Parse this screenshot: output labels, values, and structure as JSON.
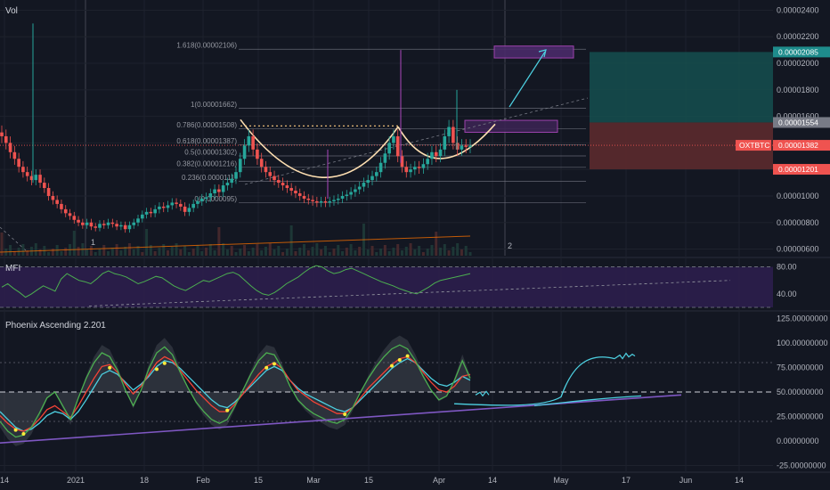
{
  "panels": {
    "main": {
      "title": "Vol",
      "ticker": "OXTBTC"
    },
    "mfi": {
      "title": "MFI"
    },
    "phoenix": {
      "title": "Phoenix Ascending 2.201"
    }
  },
  "colors": {
    "background": "#131722",
    "grid": "#1e222d",
    "up": "#26a69a",
    "down": "#ef5350",
    "cup": "#ffe0b2",
    "mfi_fill": "#2e1f4f",
    "phoenix_green": "#4caf50",
    "phoenix_red": "#f44336",
    "phoenix_blue": "#4dd0e1",
    "trend_purple": "#7e57c2",
    "long_target": "#154f4f",
    "long_stop": "#5c2a2e"
  },
  "chart_data": [
    {
      "type": "candlestick",
      "pane": "price",
      "title": "Vol",
      "x_ticks": [
        "14",
        "2021",
        "18",
        "Feb",
        "15",
        "Mar",
        "15",
        "Apr",
        "14",
        "May",
        "17",
        "Jun",
        "14"
      ],
      "y_ticks": [
        "0.00002400",
        "0.00002200",
        "0.00002000",
        "0.00001800",
        "0.00001600",
        "0.00001400",
        "0.00001200",
        "0.00001000",
        "0.00000800",
        "0.00000600"
      ],
      "ylim": [
        5.5e-06,
        2.45e-05
      ],
      "fib_levels": [
        {
          "label": "1.618(0.00002106)",
          "value": 2.106e-05
        },
        {
          "label": "1(0.00001662)",
          "value": 1.662e-05
        },
        {
          "label": "0.786(0.00001508)",
          "value": 1.508e-05
        },
        {
          "label": "0.618(0.00001387)",
          "value": 1.387e-05
        },
        {
          "label": "0.5(0.00001302)",
          "value": 1.302e-05
        },
        {
          "label": "0.382(0.00001216)",
          "value": 1.216e-05
        },
        {
          "label": "0.236(0.0000111)",
          "value": 1.11e-05
        },
        {
          "label": "0(0.0000095)",
          "value": 9.5e-06
        }
      ],
      "price_badges": [
        {
          "label": "0.00002085",
          "value": 2.085e-05,
          "color": "#1e8c8c"
        },
        {
          "label": "0.00001554",
          "value": 1.554e-05,
          "color": "#787b86"
        },
        {
          "label": "0.00001382",
          "value": 1.382e-05,
          "color": "#ef5350",
          "ticker": "OXTBTC"
        },
        {
          "label": "0.00001201",
          "value": 1.201e-05,
          "color": "#ef5350"
        }
      ],
      "closes": [
        1.45e-05,
        1.4e-05,
        1.33e-05,
        1.28e-05,
        1.22e-05,
        1.18e-05,
        1.15e-05,
        1.12e-05,
        1.16e-05,
        1.1e-05,
        1.06e-05,
        1e-05,
        9.7e-06,
        9.4e-06,
        9e-06,
        8.7e-06,
        8.5e-06,
        8.2e-06,
        8e-06,
        7.8e-06,
        8e-06,
        7.7e-06,
        7.6e-06,
        7.9e-06,
        7.8e-06,
        8e-06,
        7.9e-06,
        7.7e-06,
        7.8e-06,
        7.5e-06,
        7.8e-06,
        8e-06,
        8.3e-06,
        8.6e-06,
        8.8e-06,
        8.7e-06,
        9e-06,
        9.2e-06,
        9.1e-06,
        9.3e-06,
        9.5e-06,
        9.4e-06,
        9.2e-06,
        8.8e-06,
        9.1e-06,
        9.4e-06,
        9.6e-06,
        9.8e-06,
        9.9e-06,
        1.02e-05,
        1.05e-05,
        1.03e-05,
        1.08e-05,
        1.1e-05,
        1.13e-05,
        1.18e-05,
        1.28e-05,
        1.38e-05,
        1.45e-05,
        1.35e-05,
        1.28e-05,
        1.22e-05,
        1.18e-05,
        1.15e-05,
        1.12e-05,
        1.1e-05,
        1.08e-05,
        1.06e-05,
        1.04e-05,
        1.02e-05,
        1e-05,
        9.8e-06,
        9.7e-06,
        9.6e-06,
        9.5e-06,
        9.6e-06,
        9.5e-06,
        9.6e-06,
        9.7e-06,
        9.8e-06,
        1e-05,
        1.01e-05,
        1.03e-05,
        1.05e-05,
        1.07e-05,
        1.1e-05,
        1.12e-05,
        1.15e-05,
        1.18e-05,
        1.25e-05,
        1.32e-05,
        1.4e-05,
        1.45e-05,
        1.3e-05,
        1.22e-05,
        1.18e-05,
        1.2e-05,
        1.22e-05,
        1.21e-05,
        1.24e-05,
        1.28e-05,
        1.33e-05,
        1.3e-05,
        1.35e-05,
        1.45e-05,
        1.52e-05,
        1.4e-05,
        1.35e-05,
        1.38e-05,
        1.37e-05,
        1.38e-05
      ],
      "vol_events": [
        {
          "label": "1"
        },
        {
          "label": "2"
        }
      ]
    },
    {
      "type": "line",
      "pane": "mfi",
      "title": "MFI",
      "y_ticks": [
        "80.00",
        "40.00"
      ],
      "ylim": [
        20,
        90
      ],
      "bands": [
        80,
        20
      ],
      "values": [
        50,
        55,
        48,
        42,
        35,
        40,
        46,
        52,
        48,
        44,
        62,
        70,
        65,
        60,
        58,
        55,
        62,
        70,
        74,
        70,
        68,
        65,
        60,
        55,
        58,
        62,
        66,
        64,
        58,
        52,
        48,
        45,
        50,
        55,
        60,
        58,
        62,
        66,
        70,
        72,
        68,
        60,
        52,
        45,
        40,
        38,
        42,
        48,
        55,
        60,
        65,
        72,
        78,
        82,
        80,
        74,
        70,
        72,
        76,
        78,
        74,
        70,
        66,
        62,
        58,
        55,
        52,
        48,
        45,
        42,
        40,
        45,
        50,
        56,
        60,
        62,
        64,
        66,
        68,
        70
      ]
    },
    {
      "type": "line",
      "pane": "phoenix",
      "title": "Phoenix Ascending 2.201",
      "y_ticks": [
        "125.00000000",
        "100.00000000",
        "75.00000000",
        "50.00000000",
        "25.00000000",
        "0.00000000",
        "-25.00000000"
      ],
      "ylim": [
        -30,
        130
      ],
      "levels": [
        80,
        50,
        20
      ],
      "series": [
        {
          "color": "#4dd0e1",
          "values": [
            30,
            22,
            14,
            10,
            12,
            18,
            26,
            30,
            28,
            22,
            30,
            42,
            55,
            68,
            72,
            68,
            60,
            52,
            58,
            66,
            76,
            82,
            80,
            74,
            66,
            58,
            50,
            42,
            36,
            34,
            40,
            48,
            56,
            64,
            72,
            76,
            72,
            62,
            54,
            48,
            44,
            40,
            36,
            32,
            30,
            34,
            42,
            50,
            58,
            66,
            74,
            80,
            84,
            80,
            72,
            64,
            58,
            56,
            60,
            66,
            62
          ]
        },
        {
          "color": "#f44336",
          "values": [
            26,
            18,
            12,
            10,
            14,
            22,
            32,
            36,
            30,
            24,
            36,
            50,
            64,
            76,
            78,
            70,
            58,
            48,
            56,
            68,
            80,
            86,
            82,
            72,
            62,
            52,
            44,
            36,
            30,
            30,
            38,
            48,
            58,
            68,
            76,
            80,
            74,
            62,
            52,
            46,
            40,
            36,
            32,
            28,
            28,
            34,
            44,
            54,
            62,
            70,
            78,
            84,
            86,
            80,
            70,
            60,
            52,
            50,
            56,
            66,
            68
          ]
        },
        {
          "color": "#4caf50",
          "values": [
            20,
            10,
            4,
            6,
            14,
            28,
            44,
            50,
            36,
            22,
            44,
            64,
            80,
            90,
            86,
            72,
            52,
            36,
            52,
            74,
            90,
            96,
            88,
            70,
            54,
            40,
            30,
            22,
            18,
            22,
            36,
            52,
            68,
            82,
            90,
            88,
            74,
            56,
            42,
            34,
            28,
            24,
            20,
            18,
            22,
            34,
            50,
            64,
            76,
            86,
            94,
            98,
            94,
            82,
            66,
            52,
            42,
            46,
            62,
            82,
            64
          ]
        }
      ]
    }
  ]
}
